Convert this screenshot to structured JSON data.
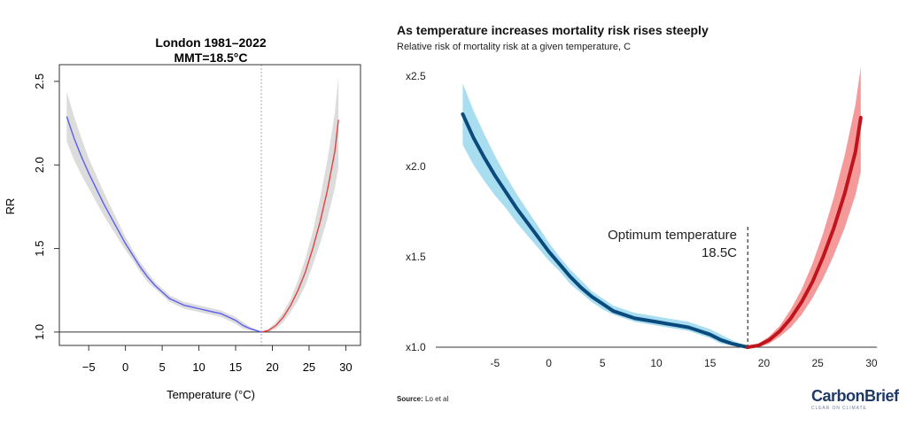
{
  "chart_data": [
    {
      "type": "line",
      "title": "London 1981–2022",
      "subtitle": "MMT=18.5°C",
      "xlabel": "Temperature (°C)",
      "ylabel": "RR",
      "xlim": [
        -9,
        32
      ],
      "ylim": [
        0.92,
        2.6
      ],
      "xticks": [
        -5,
        0,
        5,
        10,
        15,
        20,
        25,
        30
      ],
      "yticks": [
        1.0,
        1.5,
        2.0,
        2.5
      ],
      "ytick_labels": [
        "1.0",
        "1.5",
        "2.0",
        "2.5"
      ],
      "reference_line": 1.0,
      "mmt": 18.5,
      "series": [
        {
          "name": "cold",
          "color": "#5b5ef0",
          "x": [
            -8,
            -7,
            -6,
            -5,
            -4,
            -3,
            -2,
            -1,
            0,
            1,
            2,
            3,
            4,
            5,
            6,
            7,
            8,
            9,
            10,
            11,
            12,
            13,
            14,
            15,
            16,
            17,
            18.5
          ],
          "values": [
            2.29,
            2.16,
            2.05,
            1.95,
            1.86,
            1.77,
            1.69,
            1.61,
            1.53,
            1.46,
            1.39,
            1.33,
            1.28,
            1.24,
            1.2,
            1.18,
            1.16,
            1.15,
            1.14,
            1.13,
            1.12,
            1.11,
            1.09,
            1.07,
            1.04,
            1.02,
            1.0
          ],
          "lower": [
            2.14,
            2.03,
            1.94,
            1.86,
            1.78,
            1.7,
            1.63,
            1.56,
            1.49,
            1.43,
            1.36,
            1.3,
            1.26,
            1.22,
            1.18,
            1.16,
            1.14,
            1.13,
            1.12,
            1.11,
            1.1,
            1.09,
            1.07,
            1.05,
            1.02,
            1.01,
            1.0
          ],
          "upper": [
            2.44,
            2.29,
            2.16,
            2.04,
            1.94,
            1.84,
            1.75,
            1.66,
            1.57,
            1.49,
            1.42,
            1.36,
            1.3,
            1.26,
            1.22,
            1.2,
            1.18,
            1.17,
            1.16,
            1.15,
            1.14,
            1.13,
            1.11,
            1.09,
            1.06,
            1.03,
            1.0
          ]
        },
        {
          "name": "heat",
          "color": "#e84040",
          "x": [
            18.5,
            19.5,
            20.5,
            21.5,
            22.5,
            23.5,
            24.5,
            25.5,
            26.5,
            27.5,
            28.5,
            29
          ],
          "values": [
            1.0,
            1.01,
            1.04,
            1.09,
            1.16,
            1.25,
            1.36,
            1.5,
            1.66,
            1.85,
            2.08,
            2.27
          ],
          "lower": [
            1.0,
            1.0,
            1.02,
            1.06,
            1.12,
            1.19,
            1.28,
            1.4,
            1.53,
            1.68,
            1.86,
            1.99
          ],
          "upper": [
            1.0,
            1.02,
            1.06,
            1.12,
            1.2,
            1.31,
            1.44,
            1.6,
            1.8,
            2.03,
            2.31,
            2.53
          ]
        }
      ]
    },
    {
      "type": "line",
      "title": "As temperature increases mortality risk rises steeply",
      "subtitle": "Relative risk of mortality risk at a given temperature, C",
      "annotation": [
        "Optimum temperature",
        "18.5C"
      ],
      "xlim": [
        -10.5,
        30.5
      ],
      "ylim": [
        1.0,
        2.5
      ],
      "xticks": [
        -5,
        0,
        5,
        10,
        15,
        20,
        25,
        30
      ],
      "yticks": [
        1.0,
        1.5,
        2.0,
        2.5
      ],
      "ytick_labels": [
        "x1.0",
        "x1.5",
        "x2.0",
        "x2.5"
      ],
      "mmt": 18.5,
      "source_label": "Source:",
      "source": "Lo et al",
      "series": [
        {
          "name": "cold",
          "color": "#0b4a7c",
          "band_color": "#a9def0",
          "x": [
            -8,
            -7,
            -6,
            -5,
            -4,
            -3,
            -2,
            -1,
            0,
            1,
            2,
            3,
            4,
            5,
            6,
            7,
            8,
            9,
            10,
            11,
            12,
            13,
            14,
            15,
            16,
            17,
            18.5
          ],
          "values": [
            2.29,
            2.16,
            2.05,
            1.95,
            1.86,
            1.77,
            1.69,
            1.61,
            1.53,
            1.46,
            1.39,
            1.33,
            1.28,
            1.24,
            1.2,
            1.18,
            1.16,
            1.15,
            1.14,
            1.13,
            1.12,
            1.11,
            1.09,
            1.07,
            1.04,
            1.02,
            1.0
          ],
          "lower": [
            2.12,
            2.01,
            1.92,
            1.84,
            1.77,
            1.69,
            1.62,
            1.55,
            1.48,
            1.42,
            1.35,
            1.3,
            1.25,
            1.21,
            1.18,
            1.16,
            1.14,
            1.13,
            1.12,
            1.11,
            1.1,
            1.09,
            1.07,
            1.05,
            1.02,
            1.01,
            1.0
          ],
          "upper": [
            2.46,
            2.31,
            2.18,
            2.06,
            1.95,
            1.85,
            1.76,
            1.67,
            1.58,
            1.5,
            1.43,
            1.37,
            1.31,
            1.27,
            1.23,
            1.21,
            1.19,
            1.18,
            1.17,
            1.16,
            1.15,
            1.14,
            1.12,
            1.1,
            1.07,
            1.04,
            1.0
          ]
        },
        {
          "name": "heat",
          "color": "#c0151d",
          "band_color": "#f59a9a",
          "x": [
            18.5,
            19.5,
            20.5,
            21.5,
            22.5,
            23.5,
            24.5,
            25.5,
            26.5,
            27.5,
            28.5,
            29
          ],
          "values": [
            1.0,
            1.01,
            1.04,
            1.09,
            1.16,
            1.25,
            1.36,
            1.5,
            1.66,
            1.85,
            2.08,
            2.27
          ],
          "lower": [
            1.0,
            1.0,
            1.02,
            1.06,
            1.11,
            1.18,
            1.27,
            1.38,
            1.51,
            1.66,
            1.84,
            1.97
          ],
          "upper": [
            1.0,
            1.02,
            1.06,
            1.12,
            1.21,
            1.32,
            1.46,
            1.63,
            1.83,
            2.06,
            2.34,
            2.55
          ]
        }
      ]
    }
  ],
  "brand": {
    "name": "CarbonBrief",
    "tagline": "CLEAR ON CLIMATE"
  }
}
